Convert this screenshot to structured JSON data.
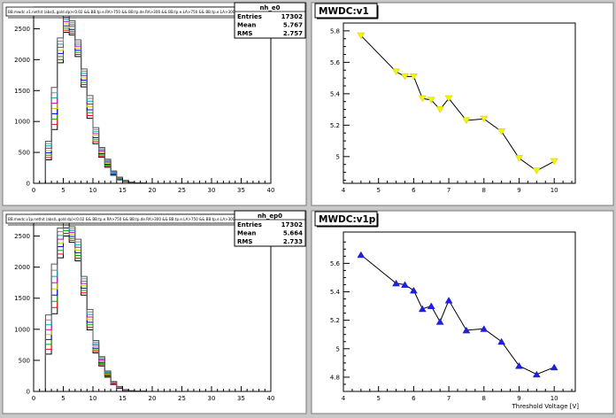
{
  "panels": [
    {
      "kind": "histogram",
      "cut_label": "BB.mwdc.v1.nethit (abs(L.gold.dp)<0.02 && BB.tp.e.RA>750 && BB.tp.de.RA>300 && BB.tp.e.LA>750 && BB.tp.e.LA>300)",
      "stats": {
        "name": "nh_e0",
        "rows": [
          [
            "Entries",
            "17302"
          ],
          [
            "Mean",
            "5.767"
          ],
          [
            "RMS",
            "2.757"
          ]
        ]
      }
    },
    {
      "kind": "graph",
      "title": "MWDC:v1",
      "xlabel": "",
      "marker": "triangle-down",
      "color": "#f5f500"
    },
    {
      "kind": "histogram",
      "cut_label": "BB.mwdc.v1p.nethit (abs(L.gold.dp)<0.02 && BB.tp.e.RA>750 && BB.tp.de.RA>300 && BB.tp.e.LA>750 && BB.tp.e.LA>300)",
      "stats": {
        "name": "nh_ep0",
        "rows": [
          [
            "Entries",
            "17302"
          ],
          [
            "Mean",
            "5.664"
          ],
          [
            "RMS",
            "2.733"
          ]
        ]
      }
    },
    {
      "kind": "graph",
      "title": "MWDC:v1p",
      "xlabel": "Threshold Voltage [V]",
      "marker": "triangle-up",
      "color": "#1f1fe0"
    }
  ],
  "chart_data": [
    {
      "type": "bar",
      "title": "",
      "xlabel": "",
      "ylabel": "",
      "xlim": [
        0,
        40
      ],
      "ylim": [
        0,
        2850
      ],
      "xticks": [
        "0",
        "5",
        "10",
        "15",
        "20",
        "25",
        "30",
        "35",
        "40"
      ],
      "yticks": [
        "0",
        "500",
        "1000",
        "1500",
        "2000",
        "2500"
      ],
      "bin_width": 1,
      "series_colors": [
        "#000000",
        "#ff0000",
        "#00aa00",
        "#0000ff",
        "#cccc00",
        "#cc00cc",
        "#00aaaa",
        "#888888",
        "#555555"
      ],
      "bins_low": [
        2,
        3,
        4,
        5,
        6,
        7,
        8,
        9,
        10,
        11,
        12,
        13,
        14,
        15,
        16,
        17,
        18
      ],
      "series_max": [
        680,
        1550,
        2350,
        2720,
        2630,
        2320,
        1850,
        1420,
        900,
        580,
        390,
        200,
        100,
        48,
        20,
        8,
        3
      ],
      "series_min": [
        380,
        870,
        1950,
        2440,
        2400,
        2050,
        1560,
        1050,
        640,
        420,
        260,
        130,
        55,
        25,
        10,
        3,
        1
      ]
    },
    {
      "type": "line",
      "title": "MWDC:v1",
      "xlabel": "",
      "ylabel": "",
      "xlim": [
        4,
        10.6
      ],
      "ylim": [
        4.83,
        5.85
      ],
      "xticks": [
        "4",
        "5",
        "6",
        "7",
        "8",
        "9",
        "10"
      ],
      "yticks": [
        "5",
        "5.2",
        "5.4",
        "5.6",
        "5.8"
      ],
      "series": [
        {
          "x": [
            4.5,
            5.5,
            5.75,
            6.0,
            6.25,
            6.5,
            6.75,
            7.0,
            7.5,
            8.0,
            8.5,
            9.0,
            9.5,
            10.0
          ],
          "values": [
            5.77,
            5.54,
            5.51,
            5.51,
            5.37,
            5.36,
            5.3,
            5.37,
            5.23,
            5.24,
            5.16,
            4.99,
            4.91,
            4.97
          ]
        }
      ]
    },
    {
      "type": "bar",
      "title": "",
      "xlabel": "",
      "ylabel": "",
      "xlim": [
        0,
        40
      ],
      "ylim": [
        0,
        2850
      ],
      "xticks": [
        "0",
        "5",
        "10",
        "15",
        "20",
        "25",
        "30",
        "35",
        "40"
      ],
      "yticks": [
        "0",
        "500",
        "1000",
        "1500",
        "2000",
        "2500"
      ],
      "bin_width": 1,
      "series_colors": [
        "#000000",
        "#ff0000",
        "#00aa00",
        "#0000ff",
        "#cccc00",
        "#cc00cc",
        "#00aaaa",
        "#888888",
        "#555555"
      ],
      "bins_low": [
        2,
        3,
        4,
        5,
        6,
        7,
        8,
        9,
        10,
        11,
        12,
        13,
        14,
        15,
        16,
        17,
        18
      ],
      "series_max": [
        1230,
        2050,
        2630,
        2850,
        2650,
        2450,
        1850,
        1320,
        820,
        560,
        330,
        160,
        80,
        30,
        12,
        5,
        2
      ],
      "series_min": [
        600,
        1250,
        2150,
        2500,
        2400,
        2100,
        1550,
        990,
        620,
        410,
        230,
        110,
        50,
        18,
        6,
        2,
        1
      ]
    },
    {
      "type": "line",
      "title": "MWDC:v1p",
      "xlabel": "Threshold Voltage [V]",
      "ylabel": "",
      "xlim": [
        4,
        10.6
      ],
      "ylim": [
        4.7,
        5.82
      ],
      "xticks": [
        "4",
        "5",
        "6",
        "7",
        "8",
        "9",
        "10"
      ],
      "yticks": [
        "4.8",
        "5",
        "5.2",
        "5.4",
        "5.6"
      ],
      "series": [
        {
          "x": [
            4.5,
            5.5,
            5.75,
            6.0,
            6.25,
            6.5,
            6.75,
            7.0,
            7.5,
            8.0,
            8.5,
            9.0,
            9.5,
            10.0
          ],
          "values": [
            5.66,
            5.46,
            5.45,
            5.41,
            5.28,
            5.3,
            5.19,
            5.34,
            5.13,
            5.14,
            5.05,
            4.88,
            4.82,
            4.87
          ]
        }
      ]
    }
  ]
}
